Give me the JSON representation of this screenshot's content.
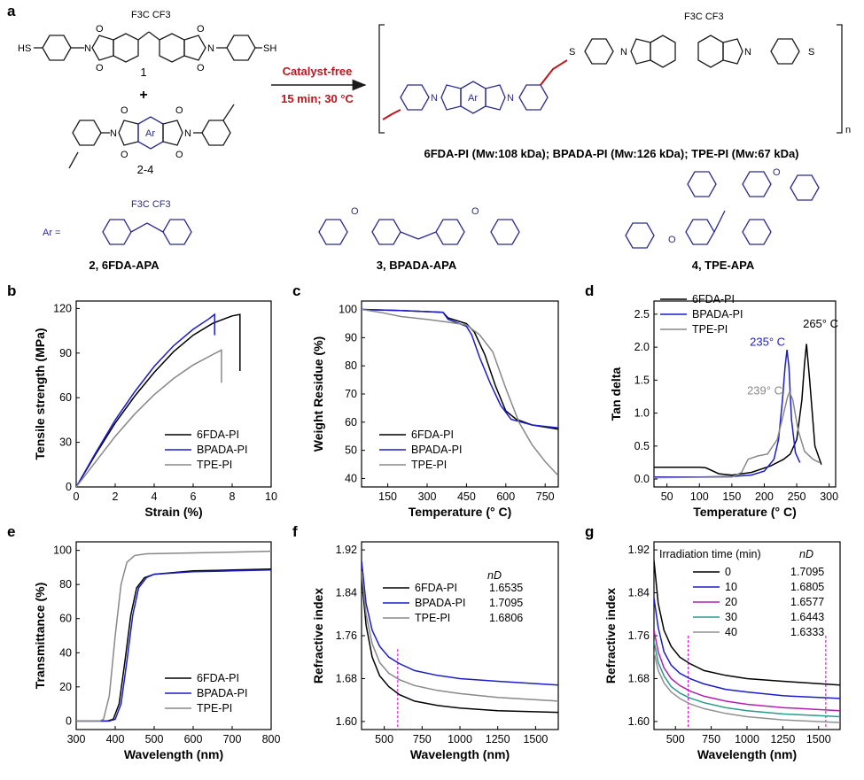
{
  "panel_a": {
    "letter": "a",
    "reactant_1_label": "1",
    "plus": "+",
    "reactant_2_label": "2-4",
    "arrow_top": "Catalyst-free",
    "arrow_bottom": "15 min; 30 °C",
    "product_mw_text": "6FDA-PI (Mw:108 kDa); BPADA-PI (Mw:126 kDa); TPE-PI (Mw:67 kDa)",
    "repeat_n": "n",
    "atom_sh": "HS",
    "atom_sh_right": "SH",
    "atom_cf3": "F3C  CF3",
    "atom_n": "N",
    "atom_o": "O",
    "atom_s": "S",
    "ar_label": "Ar",
    "ar_eq": "Ar =",
    "monomers": [
      {
        "label": "2, 6FDA-APA"
      },
      {
        "label": "3, BPADA-APA"
      },
      {
        "label": "4, TPE-APA"
      }
    ],
    "colors": {
      "accent": "#c0141c",
      "structure_blue": "#2a2a8c",
      "dark": "#1a1a1a"
    }
  },
  "chart_data": [
    {
      "id": "b",
      "type": "line",
      "title": "",
      "xlabel": "Strain (%)",
      "ylabel": "Tensile strength (MPa)",
      "xlim": [
        0,
        10
      ],
      "ylim": [
        0,
        125
      ],
      "xticks": [
        0,
        2,
        4,
        6,
        8,
        10
      ],
      "yticks": [
        0,
        30,
        60,
        90,
        120
      ],
      "legend": [
        "6FDA-PI",
        "BPADA-PI",
        "TPE-PI"
      ],
      "legend_position": "bottom-right",
      "series": [
        {
          "name": "6FDA-PI",
          "color": "#000000",
          "x": [
            0,
            1,
            2,
            3,
            4,
            5,
            6,
            7,
            8,
            8.4,
            8.4
          ],
          "y": [
            0,
            22,
            43,
            61,
            77,
            91,
            102,
            110,
            115,
            116,
            78
          ]
        },
        {
          "name": "BPADA-PI",
          "color": "#1c1cc8",
          "x": [
            0,
            1,
            2,
            3,
            4,
            5,
            6,
            6.8,
            7.1,
            7.1
          ],
          "y": [
            0,
            23,
            45,
            64,
            81,
            95,
            106,
            113,
            116,
            102
          ]
        },
        {
          "name": "TPE-PI",
          "color": "#888888",
          "x": [
            0,
            1,
            2,
            3,
            4,
            5,
            6,
            7,
            7.45,
            7.45
          ],
          "y": [
            0,
            17,
            34,
            49,
            62,
            73,
            82,
            89,
            92,
            70
          ]
        }
      ]
    },
    {
      "id": "c",
      "type": "line",
      "title": "",
      "xlabel": "Temperature (° C)",
      "ylabel": "Weight Residue (%)",
      "xlim": [
        50,
        800
      ],
      "ylim": [
        37,
        103
      ],
      "xticks": [
        150,
        300,
        450,
        600,
        750
      ],
      "yticks": [
        40,
        50,
        60,
        70,
        80,
        90,
        100
      ],
      "legend": [
        "6FDA-PI",
        "BPADA-PI",
        "TPE-PI"
      ],
      "legend_position": "bottom-left",
      "series": [
        {
          "name": "6FDA-PI",
          "color": "#000000",
          "x": [
            50,
            200,
            360,
            380,
            450,
            480,
            520,
            560,
            600,
            640,
            700,
            800
          ],
          "y": [
            100,
            99.6,
            99,
            97,
            95,
            92,
            84,
            73,
            64,
            61,
            59,
            57.5
          ]
        },
        {
          "name": "BPADA-PI",
          "color": "#1c1cc8",
          "x": [
            50,
            200,
            360,
            380,
            450,
            470,
            500,
            540,
            580,
            620,
            700,
            800
          ],
          "y": [
            100,
            99.6,
            99,
            96.5,
            94,
            91,
            83,
            74,
            66,
            61,
            59,
            58
          ]
        },
        {
          "name": "TPE-PI",
          "color": "#888888",
          "x": [
            50,
            120,
            200,
            300,
            380,
            450,
            500,
            550,
            600,
            650,
            700,
            750,
            800
          ],
          "y": [
            100,
            99,
            97.5,
            96.5,
            95.5,
            94.5,
            91,
            85,
            72,
            60,
            52,
            46,
            41
          ]
        }
      ]
    },
    {
      "id": "d",
      "type": "line",
      "title": "",
      "xlabel": "Temperature (° C)",
      "ylabel": "Tan delta",
      "xlim": [
        30,
        310
      ],
      "ylim": [
        -0.12,
        2.7
      ],
      "xticks": [
        50,
        100,
        150,
        200,
        250,
        300
      ],
      "yticks": [
        0.0,
        0.5,
        1.0,
        1.5,
        2.0,
        2.5
      ],
      "legend": [
        "6FDA-PI",
        "BPADA-PI",
        "TPE-PI"
      ],
      "legend_position": "top-left",
      "annotations": [
        {
          "text": "265° C",
          "x": 265,
          "y": 2.1,
          "color": "#000000"
        },
        {
          "text": "235° C",
          "x": 235,
          "y": 1.96,
          "color": "#1c1cc8"
        },
        {
          "text": "239° C",
          "x": 239,
          "y": 1.27,
          "color": "#888888"
        }
      ],
      "series": [
        {
          "name": "6FDA-PI",
          "color": "#000000",
          "x": [
            30,
            100,
            110,
            130,
            150,
            180,
            210,
            230,
            240,
            250,
            258,
            262,
            265,
            270,
            278,
            288
          ],
          "y": [
            0.18,
            0.18,
            0.17,
            0.08,
            0.06,
            0.1,
            0.2,
            0.3,
            0.38,
            0.6,
            1.2,
            1.75,
            2.05,
            1.5,
            0.5,
            0.22
          ]
        },
        {
          "name": "BPADA-PI",
          "color": "#1c1cc8",
          "x": [
            30,
            100,
            150,
            180,
            200,
            215,
            222,
            228,
            232,
            235,
            238,
            242,
            248,
            255
          ],
          "y": [
            0.03,
            0.03,
            0.04,
            0.06,
            0.12,
            0.3,
            0.6,
            1.2,
            1.7,
            1.96,
            1.7,
            0.9,
            0.4,
            0.25
          ]
        },
        {
          "name": "TPE-PI",
          "color": "#888888",
          "x": [
            30,
            150,
            165,
            175,
            190,
            205,
            220,
            230,
            236,
            239,
            244,
            252,
            262,
            275,
            285
          ],
          "y": [
            0.02,
            0.03,
            0.1,
            0.3,
            0.35,
            0.38,
            0.6,
            1.0,
            1.25,
            1.32,
            1.2,
            0.75,
            0.42,
            0.3,
            0.25
          ]
        }
      ]
    },
    {
      "id": "e",
      "type": "line",
      "title": "",
      "xlabel": "Wavelength (nm)",
      "ylabel": "Transmittance (%)",
      "xlim": [
        300,
        800
      ],
      "ylim": [
        -5,
        105
      ],
      "xticks": [
        300,
        400,
        500,
        600,
        700,
        800
      ],
      "yticks": [
        0,
        20,
        40,
        60,
        80,
        100
      ],
      "legend": [
        "6FDA-PI",
        "BPADA-PI",
        "TPE-PI"
      ],
      "legend_position": "bottom-right",
      "series": [
        {
          "name": "6FDA-PI",
          "color": "#000000",
          "x": [
            300,
            380,
            395,
            410,
            425,
            440,
            455,
            475,
            500,
            600,
            700,
            800
          ],
          "y": [
            0,
            0,
            1,
            10,
            35,
            62,
            78,
            84,
            86,
            88,
            88.5,
            89
          ]
        },
        {
          "name": "BPADA-PI",
          "color": "#1c1cc8",
          "x": [
            300,
            385,
            400,
            415,
            430,
            445,
            460,
            480,
            500,
            600,
            700,
            800
          ],
          "y": [
            0,
            0,
            1,
            10,
            35,
            62,
            78,
            84,
            86,
            87.5,
            88,
            88.5
          ]
        },
        {
          "name": "TPE-PI",
          "color": "#888888",
          "x": [
            300,
            360,
            370,
            385,
            400,
            415,
            430,
            450,
            480,
            600,
            700,
            800
          ],
          "y": [
            0,
            0,
            1,
            15,
            50,
            80,
            93,
            97,
            98,
            98.5,
            99,
            99.5
          ]
        }
      ]
    },
    {
      "id": "f",
      "type": "line",
      "title": "",
      "xlabel": "Wavelength (nm)",
      "ylabel": "Refractive index",
      "xlim": [
        350,
        1650
      ],
      "ylim": [
        1.585,
        1.935
      ],
      "xticks": [
        500,
        750,
        1000,
        1250,
        1500
      ],
      "yticks": [
        1.6,
        1.68,
        1.76,
        1.84,
        1.92
      ],
      "legend": [
        "6FDA-PI",
        "BPADA-PI",
        "TPE-PI"
      ],
      "legend_position": "top-right",
      "legend_header": "nD",
      "nd_values": [
        "1.6535",
        "1.7095",
        "1.6806"
      ],
      "dashed_line_x": 589,
      "series": [
        {
          "name": "6FDA-PI",
          "color": "#000000",
          "x": [
            350,
            380,
            420,
            470,
            530,
            600,
            700,
            850,
            1000,
            1250,
            1650
          ],
          "y": [
            1.87,
            1.78,
            1.72,
            1.685,
            1.665,
            1.65,
            1.638,
            1.63,
            1.625,
            1.62,
            1.617
          ]
        },
        {
          "name": "BPADA-PI",
          "color": "#1c1cc8",
          "x": [
            350,
            380,
            420,
            470,
            530,
            600,
            700,
            850,
            1000,
            1250,
            1650
          ],
          "y": [
            1.9,
            1.82,
            1.77,
            1.74,
            1.72,
            1.708,
            1.695,
            1.686,
            1.68,
            1.675,
            1.668
          ]
        },
        {
          "name": "TPE-PI",
          "color": "#888888",
          "x": [
            350,
            380,
            420,
            470,
            530,
            600,
            700,
            850,
            1000,
            1250,
            1650
          ],
          "y": [
            1.88,
            1.8,
            1.745,
            1.71,
            1.69,
            1.678,
            1.667,
            1.658,
            1.652,
            1.645,
            1.638
          ]
        }
      ]
    },
    {
      "id": "g",
      "type": "line",
      "title": "",
      "xlabel": "Wavelength (nm)",
      "ylabel": "Refractive index",
      "xlim": [
        350,
        1650
      ],
      "ylim": [
        1.585,
        1.935
      ],
      "xticks": [
        500,
        750,
        1000,
        1250,
        1500
      ],
      "yticks": [
        1.6,
        1.68,
        1.76,
        1.84,
        1.92
      ],
      "legend": [
        "0",
        "10",
        "20",
        "30",
        "40"
      ],
      "legend_position": "top-right",
      "legend_header": "Irradiation time (min)",
      "legend_header_nd": "nD",
      "nd_values": [
        "1.7095",
        "1.6805",
        "1.6577",
        "1.6443",
        "1.6333"
      ],
      "dashed_lines_x": [
        589,
        1550
      ],
      "series": [
        {
          "name": "0",
          "color": "#000000",
          "x": [
            350,
            380,
            420,
            470,
            530,
            600,
            700,
            850,
            1000,
            1250,
            1650
          ],
          "y": [
            1.9,
            1.82,
            1.77,
            1.74,
            1.72,
            1.708,
            1.695,
            1.686,
            1.68,
            1.675,
            1.668
          ]
        },
        {
          "name": "10",
          "color": "#1c1cc8",
          "x": [
            350,
            380,
            420,
            470,
            530,
            600,
            700,
            850,
            1000,
            1250,
            1650
          ],
          "y": [
            1.83,
            1.775,
            1.73,
            1.705,
            1.69,
            1.68,
            1.67,
            1.66,
            1.655,
            1.648,
            1.643
          ]
        },
        {
          "name": "20",
          "color": "#b020b0",
          "x": [
            350,
            380,
            420,
            470,
            530,
            600,
            700,
            850,
            1000,
            1250,
            1650
          ],
          "y": [
            1.77,
            1.73,
            1.7,
            1.68,
            1.667,
            1.657,
            1.647,
            1.638,
            1.632,
            1.626,
            1.62
          ]
        },
        {
          "name": "30",
          "color": "#2a9a8a",
          "x": [
            350,
            380,
            420,
            470,
            530,
            600,
            700,
            850,
            1000,
            1250,
            1650
          ],
          "y": [
            1.75,
            1.71,
            1.685,
            1.665,
            1.653,
            1.644,
            1.635,
            1.626,
            1.62,
            1.614,
            1.609
          ]
        },
        {
          "name": "40",
          "color": "#909090",
          "x": [
            350,
            380,
            420,
            470,
            530,
            600,
            700,
            850,
            1000,
            1250,
            1650
          ],
          "y": [
            1.73,
            1.695,
            1.672,
            1.655,
            1.643,
            1.633,
            1.624,
            1.615,
            1.609,
            1.603,
            1.598
          ]
        }
      ]
    }
  ]
}
